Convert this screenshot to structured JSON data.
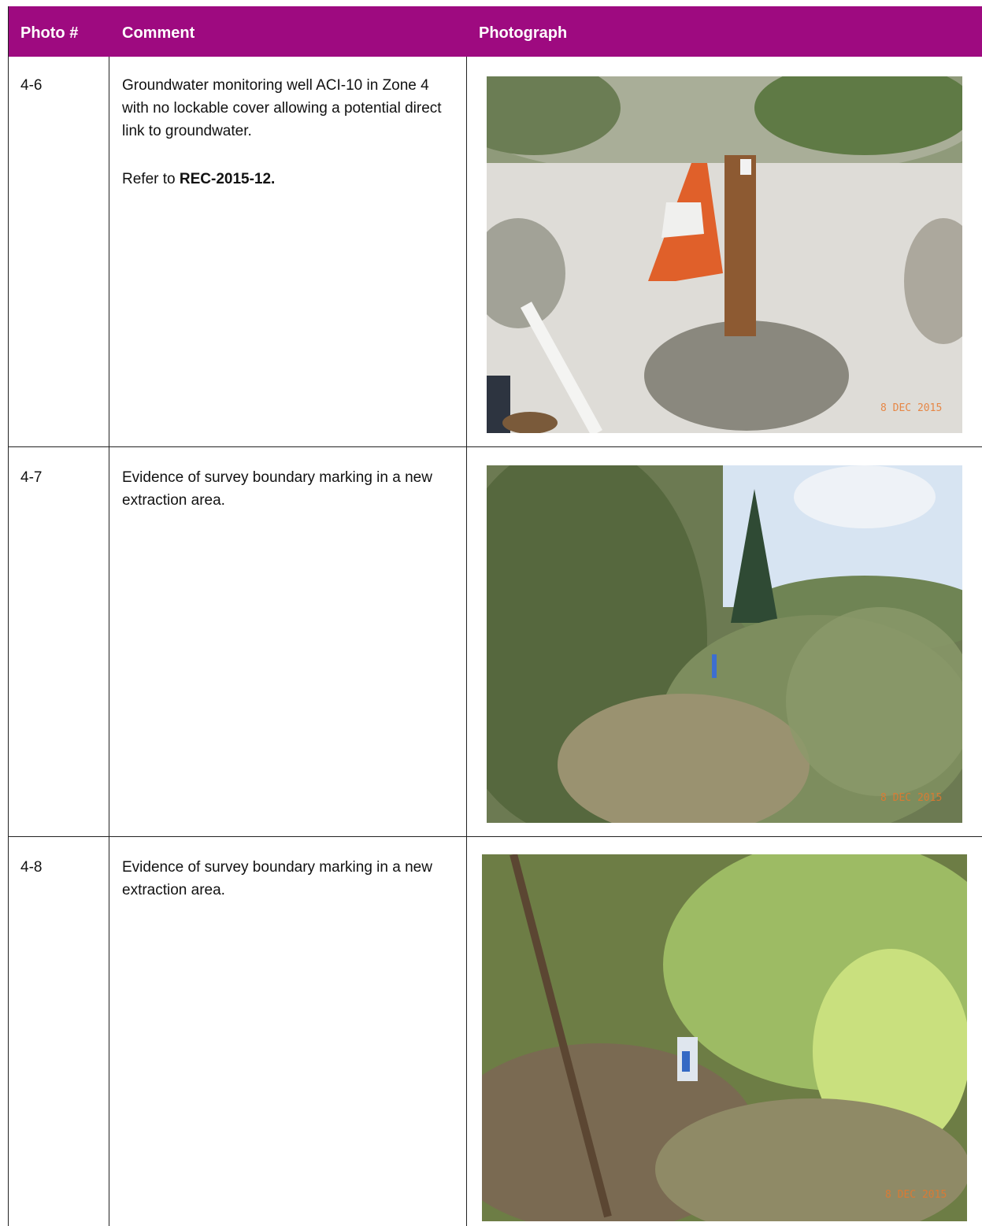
{
  "header": {
    "columns": [
      "Photo #",
      "Comment",
      "Photograph"
    ]
  },
  "table": {
    "rows": [
      {
        "photo_no": "4-6",
        "comment": "Groundwater monitoring well ACI-10 in Zone 4 with no lockable cover allowing a potential direct link to groundwater.",
        "refer_prefix": "Refer to",
        "refer_code": "REC-2015-12.",
        "stamp": "8 DEC 2015"
      },
      {
        "photo_no": "4-7",
        "comment": "Evidence of survey boundary marking in a new extraction area.",
        "stamp": "8 DEC 2015"
      },
      {
        "photo_no": "4-8",
        "comment": "Evidence of survey boundary marking in a new extraction area.",
        "stamp": "8 DEC 2015"
      }
    ]
  }
}
